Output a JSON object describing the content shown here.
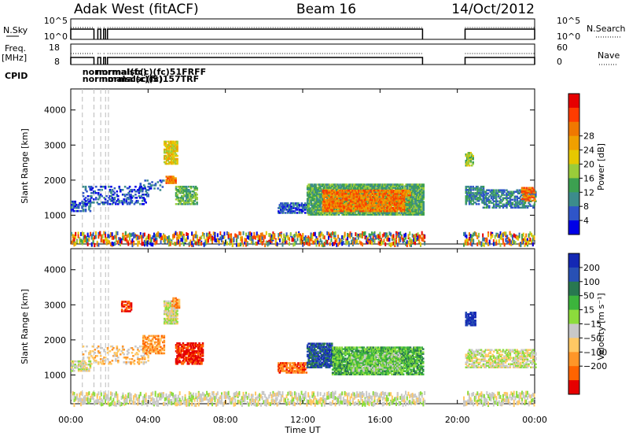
{
  "header": {
    "radar": "Adak West (fitACF)",
    "beam": "Beam 16",
    "date": "14/Oct/2012"
  },
  "nsky_panel": {
    "left_label": "N.Sky",
    "right_label": "N.Search",
    "left_ticks": [
      "10^5",
      "10^0"
    ],
    "right_ticks": [
      "10^5",
      "10^0"
    ],
    "segments": [
      [
        0.0,
        1.2
      ],
      [
        1.4,
        1.55
      ],
      [
        1.7,
        1.8
      ],
      [
        1.9,
        18.2
      ],
      [
        20.4,
        24.0
      ]
    ]
  },
  "freq_panel": {
    "left_label_1": "Freq.",
    "left_label_2": "[MHz]",
    "right_label": "Nave",
    "left_ticks": [
      "18",
      "8"
    ],
    "right_ticks": [
      "60",
      "0"
    ],
    "segments": [
      [
        0.0,
        1.2
      ],
      [
        1.4,
        1.55
      ],
      [
        1.7,
        1.8
      ],
      [
        1.9,
        18.2
      ],
      [
        20.4,
        24.0
      ]
    ]
  },
  "cpid": {
    "label": "CPID",
    "entries": [
      {
        "t": 0.6,
        "row": 0,
        "text": "norm"
      },
      {
        "t": 0.6,
        "row": 1,
        "text": "normc"
      },
      {
        "t": 1.3,
        "row": 0,
        "text": "normal(fc)"
      },
      {
        "t": 1.6,
        "row": 1,
        "text": "normalsc(fc)"
      },
      {
        "t": 1.9,
        "row": 0,
        "text": "rmalsc(c)(fc)51FRFF"
      },
      {
        "t": 1.9,
        "row": 1,
        "text": "malsc(c)(5)157TRF"
      }
    ]
  },
  "chart_data": [
    {
      "type": "heatmap",
      "name": "power",
      "ylabel": "Slant Range [km]",
      "yticks": [
        1000,
        2000,
        3000,
        4000
      ],
      "ylim": [
        180,
        4600
      ],
      "xlim": [
        0,
        24
      ],
      "colorbar": {
        "label": "Power [dB]",
        "ticks": [
          "4",
          "8",
          "12",
          "16",
          "20",
          "24",
          "28"
        ],
        "colors": [
          "#0000e6",
          "#2f55c8",
          "#3c8c8c",
          "#3ca050",
          "#9acc3a",
          "#e6c800",
          "#f0a000",
          "#f07800",
          "#ff3c00",
          "#e60000"
        ]
      },
      "regions": [
        {
          "t": [
            0.0,
            1.0
          ],
          "r": [
            1100,
            1400
          ],
          "level": 1,
          "fill": 0.6
        },
        {
          "t": [
            0.6,
            4.0
          ],
          "r": [
            1300,
            1800
          ],
          "level": 1,
          "fill": 0.3
        },
        {
          "t": [
            3.5,
            4.8
          ],
          "r": [
            1700,
            2000
          ],
          "level": 1,
          "fill": 0.3
        },
        {
          "t": [
            4.8,
            5.5
          ],
          "r": [
            2450,
            3100
          ],
          "level": 5,
          "fill": 0.75
        },
        {
          "t": [
            4.9,
            5.4
          ],
          "r": [
            1900,
            2100
          ],
          "level": 7,
          "fill": 0.8
        },
        {
          "t": [
            5.4,
            6.5
          ],
          "r": [
            1300,
            1800
          ],
          "level": 3,
          "fill": 0.6
        },
        {
          "t": [
            10.7,
            12.2
          ],
          "r": [
            1050,
            1350
          ],
          "level": 1,
          "fill": 0.6
        },
        {
          "t": [
            12.2,
            18.2
          ],
          "r": [
            1000,
            1900
          ],
          "level": 3,
          "fill": 0.85
        },
        {
          "t": [
            13.0,
            17.5
          ],
          "r": [
            1100,
            1700
          ],
          "level": 7,
          "fill": 0.75
        },
        {
          "t": [
            17.3,
            18.2
          ],
          "r": [
            1000,
            1500
          ],
          "level": 3,
          "fill": 0.7
        },
        {
          "t": [
            20.4,
            21.3
          ],
          "r": [
            1300,
            1800
          ],
          "level": 2,
          "fill": 0.6
        },
        {
          "t": [
            21.3,
            24.0
          ],
          "r": [
            1200,
            1700
          ],
          "level": 2,
          "fill": 0.5
        },
        {
          "t": [
            23.3,
            24.0
          ],
          "r": [
            1400,
            1800
          ],
          "level": 7,
          "fill": 0.6
        },
        {
          "t": [
            20.4,
            20.8
          ],
          "r": [
            2400,
            2800
          ],
          "level": 4,
          "fill": 0.6
        }
      ]
    },
    {
      "type": "heatmap",
      "name": "velocity",
      "ylabel": "Slant Range [km]",
      "yticks": [
        1000,
        2000,
        3000,
        4000
      ],
      "ylim": [
        180,
        4600
      ],
      "xlim": [
        0,
        24
      ],
      "colorbar": {
        "label": "Velocity [m s⁻¹]",
        "ticks": [
          "200",
          "100",
          "50",
          "15",
          "−15",
          "−50",
          "−100",
          "−200"
        ],
        "colors": [
          "#1428b4",
          "#2850b4",
          "#287850",
          "#3cb43c",
          "#8cdc3c",
          "#c8c8c8",
          "#ffc864",
          "#ff9628",
          "#ff6400",
          "#e60000"
        ]
      },
      "regions": [
        {
          "t": [
            0.0,
            1.0
          ],
          "r": [
            1100,
            1400
          ],
          "level": 5,
          "fill": 0.6
        },
        {
          "t": [
            0.6,
            4.0
          ],
          "r": [
            1300,
            1800
          ],
          "level": 6,
          "fill": 0.25
        },
        {
          "t": [
            3.7,
            4.8
          ],
          "r": [
            1600,
            2100
          ],
          "level": 7,
          "fill": 0.55
        },
        {
          "t": [
            4.8,
            5.5
          ],
          "r": [
            2450,
            3100
          ],
          "level": 5,
          "fill": 0.8
        },
        {
          "t": [
            5.2,
            5.6
          ],
          "r": [
            2900,
            3200
          ],
          "level": 7,
          "fill": 0.6
        },
        {
          "t": [
            5.4,
            6.8
          ],
          "r": [
            1300,
            1900
          ],
          "level": 9,
          "fill": 0.7
        },
        {
          "t": [
            2.6,
            3.1
          ],
          "r": [
            2800,
            3100
          ],
          "level": 9,
          "fill": 0.6
        },
        {
          "t": [
            10.7,
            12.2
          ],
          "r": [
            1050,
            1350
          ],
          "level": 8,
          "fill": 0.6
        },
        {
          "t": [
            12.2,
            13.5
          ],
          "r": [
            1200,
            1900
          ],
          "level": 1,
          "fill": 0.75
        },
        {
          "t": [
            13.5,
            18.2
          ],
          "r": [
            1000,
            1800
          ],
          "level": 3,
          "fill": 0.75
        },
        {
          "t": [
            14.5,
            17.0
          ],
          "r": [
            1100,
            1600
          ],
          "level": 4,
          "fill": 0.6
        },
        {
          "t": [
            20.4,
            24.0
          ],
          "r": [
            1200,
            1700
          ],
          "level": 5,
          "fill": 0.55
        },
        {
          "t": [
            20.4,
            20.9
          ],
          "r": [
            2400,
            2800
          ],
          "level": 0,
          "fill": 0.7
        }
      ]
    }
  ],
  "xaxis": {
    "ticks": [
      "00:00",
      "04:00",
      "08:00",
      "12:00",
      "16:00",
      "20:00",
      "00:00"
    ],
    "label": "Time UT"
  }
}
